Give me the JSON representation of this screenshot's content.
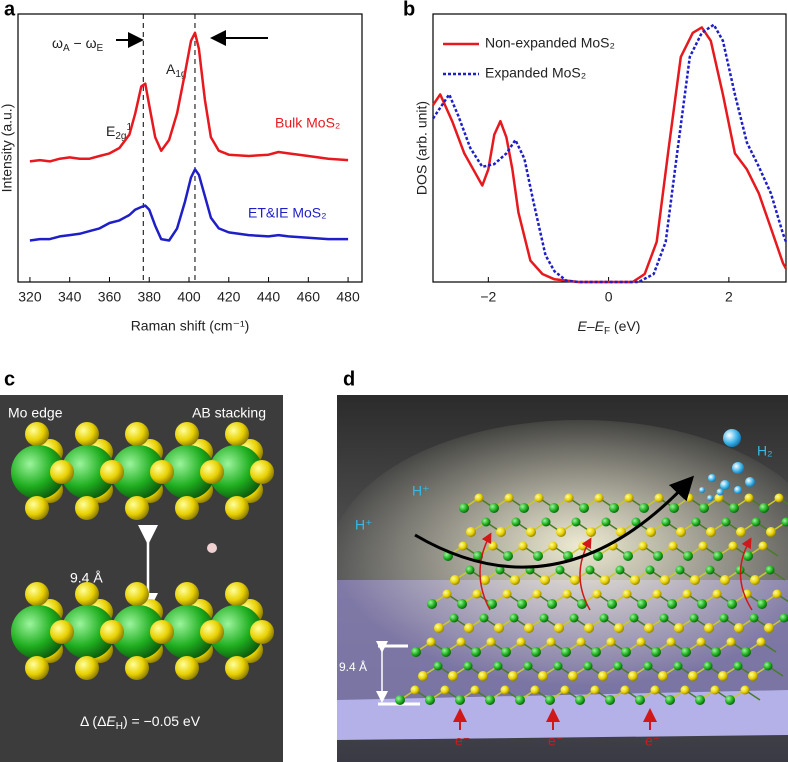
{
  "chart_data": [
    {
      "type": "line",
      "panel_label": "a",
      "xlabel": "Raman shift (cm⁻¹)",
      "ylabel": "Intensity (a.u.)",
      "xlim": [
        314,
        487
      ],
      "xticks": [
        320,
        340,
        360,
        380,
        400,
        420,
        440,
        460,
        480
      ],
      "ylim": [
        0,
        10
      ],
      "x": [
        320,
        325,
        330,
        335,
        340,
        345,
        350,
        355,
        360,
        365,
        370,
        373,
        376,
        378,
        380,
        383,
        386,
        390,
        394,
        398,
        401,
        403,
        405,
        408,
        411,
        415,
        420,
        430,
        440,
        445,
        450,
        460,
        470,
        480
      ],
      "series": [
        {
          "name": "Bulk MoS₂",
          "color": "#e8191e",
          "values": [
            4.5,
            4.55,
            4.5,
            4.6,
            4.65,
            4.6,
            4.6,
            4.7,
            4.8,
            5.0,
            5.5,
            6.3,
            7.3,
            7.4,
            6.6,
            5.4,
            4.9,
            5.3,
            6.3,
            7.8,
            9.0,
            9.3,
            8.7,
            6.8,
            5.4,
            4.9,
            4.75,
            4.7,
            4.75,
            4.85,
            4.8,
            4.7,
            4.6,
            4.55
          ]
        },
        {
          "name": "ET&IE MoS₂",
          "color": "#1f1fc8",
          "values": [
            1.55,
            1.6,
            1.6,
            1.7,
            1.75,
            1.8,
            1.9,
            2.0,
            2.2,
            2.3,
            2.5,
            2.7,
            2.8,
            2.85,
            2.7,
            2.1,
            1.6,
            1.55,
            2.0,
            3.0,
            3.9,
            4.2,
            4.0,
            3.2,
            2.4,
            2.0,
            1.85,
            1.75,
            1.7,
            1.75,
            1.7,
            1.65,
            1.6,
            1.6
          ]
        }
      ],
      "vlines": [
        377,
        403
      ],
      "annotations": {
        "shift": [
          "ω",
          "A",
          " − ω",
          "E"
        ],
        "a1g": [
          "A",
          "1g"
        ],
        "e2g": [
          "E",
          "2g",
          "1"
        ]
      }
    },
    {
      "type": "line",
      "panel_label": "b",
      "xlabel": [
        "E",
        "–",
        "E",
        "F",
        " (eV)"
      ],
      "ylabel": "DOS (arb. unit)",
      "xlim": [
        -2.92,
        2.95
      ],
      "xticks": [
        {
          "value": -2,
          "label": "−2"
        },
        0,
        2
      ],
      "ylim": [
        0,
        10
      ],
      "legend": "upper left",
      "series": [
        {
          "name": "Non-expanded MoS₂",
          "color": "#e8191e",
          "dash": false,
          "x": [
            -2.92,
            -2.8,
            -2.6,
            -2.4,
            -2.2,
            -2.1,
            -2.0,
            -1.9,
            -1.8,
            -1.7,
            -1.6,
            -1.5,
            -1.3,
            -1.1,
            -0.9,
            -0.5,
            0,
            0.4,
            0.6,
            0.8,
            1.0,
            1.2,
            1.4,
            1.55,
            1.7,
            1.9,
            2.1,
            2.3,
            2.5,
            2.7,
            2.9,
            2.95
          ],
          "values": [
            6.6,
            7.0,
            6.0,
            4.8,
            4.0,
            3.6,
            4.2,
            5.5,
            6.0,
            5.4,
            4.2,
            2.6,
            0.8,
            0.3,
            0.1,
            0,
            0,
            0,
            0.3,
            1.5,
            5.0,
            8.4,
            9.3,
            9.5,
            9.0,
            7.0,
            4.8,
            4.2,
            3.3,
            2.0,
            0.7,
            0.5
          ]
        },
        {
          "name": "Expanded MoS₂",
          "color": "#1f1fc8",
          "dash": true,
          "x": [
            -2.92,
            -2.8,
            -2.65,
            -2.5,
            -2.3,
            -2.1,
            -1.9,
            -1.7,
            -1.55,
            -1.4,
            -1.25,
            -1.05,
            -0.9,
            -0.7,
            -0.5,
            0,
            0.5,
            0.75,
            0.95,
            1.15,
            1.35,
            1.55,
            1.75,
            1.9,
            2.1,
            2.3,
            2.5,
            2.7,
            2.9,
            2.95
          ],
          "values": [
            6.1,
            6.5,
            7.0,
            6.2,
            5.0,
            4.3,
            4.4,
            4.8,
            5.3,
            4.6,
            3.0,
            1.0,
            0.4,
            0.05,
            0,
            0,
            0,
            0.3,
            1.5,
            5.0,
            8.4,
            9.3,
            9.6,
            9.0,
            7.0,
            5.2,
            4.3,
            3.3,
            1.8,
            1.5
          ]
        }
      ]
    }
  ],
  "panels": {
    "c": {
      "label": "c",
      "left_title": "Mo edge",
      "right_title": "AB stacking",
      "distance": "9.4 Å",
      "energy": [
        "Δ (Δ",
        "E",
        "H",
        ") = −0.05 eV"
      ]
    },
    "d": {
      "label": "d",
      "proton_1": "H⁺",
      "proton_2": "H⁺",
      "product": "H₂",
      "distance": "9.4 Å",
      "electrons": [
        "e⁻",
        "e⁻",
        "e⁻"
      ]
    }
  }
}
